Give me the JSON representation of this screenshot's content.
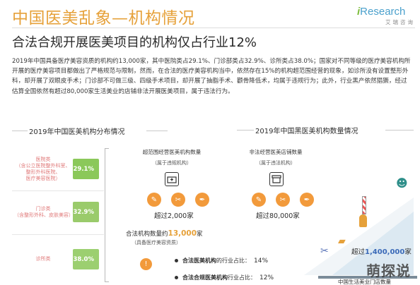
{
  "header": {
    "title": "中国医美乱象—机构情况",
    "subtitle": "合法合规开展医美项目的机构仅占行业12%",
    "brand_logo_i": "i",
    "brand_logo_rest": "Research",
    "brand_tag": "艾瑞咨询"
  },
  "paragraph": "2019年中国具备医疗美容资质的机构约13,000家，其中医院类占29.1%、门诊部类占32.9%、诊所类占38.0%；国家对不同等级的医疗美容机构所开展的医疗美容项目都做出了严格规范与限制，然而，在合法的医疗美容机构当中，依然存在15%的机构超范围经营的现象，如诊所没有设置整形外科，却开展了双眼皮手术；门诊部不可做三级、四级手术项目，却开展了抽脂手术、颧骨降低术，均属于违规行为；此外，行业黑产依然猖獗，经过估算全国依然有超过80,000家生活美业的店铺非法开展医美项目，属于违法行为。",
  "left_section": {
    "title": "2019年中国医美机构分布情况",
    "categories": [
      {
        "label_line1": "医院类",
        "label_line2": "（含公立医院整外科室、",
        "label_line3": "整形外科医院、",
        "label_line4": "医疗美容医院）",
        "percent": "29.1%",
        "value": 29.1
      },
      {
        "label_line1": "门诊类",
        "label_line2": "（含整形外科、皮肤美容）",
        "percent": "32.9%",
        "value": 32.9
      },
      {
        "label_line1": "诊所类",
        "percent": "38.0%",
        "value": 38.0
      }
    ]
  },
  "right_section": {
    "title": "2019年中国黑医美机构数量情况",
    "col1": {
      "heading": "超范围经营医美机构数量",
      "sub": "（属于违规机构）",
      "count": "超过2,000家"
    },
    "col2": {
      "heading": "非法经营医美店铺数量",
      "sub": "（属于违法机构）",
      "count": "超过80,000家"
    },
    "legal_total": {
      "prefix": "合法机构数量约",
      "number": "13,000",
      "suffix": "家",
      "note": "（具备医疗美容资质）"
    },
    "ratios": [
      {
        "bold": "合法医美机构",
        "text": "的行业占比：",
        "pct": "14%"
      },
      {
        "bold": "合法合规医美机构",
        "text": "行业占比：",
        "pct": "12%"
      }
    ],
    "life_beauty": {
      "prefix": "超过",
      "number": "1,400,000",
      "suffix": "家",
      "caption": "中国生活美业门店数量"
    }
  },
  "watermark": "萌探说"
}
